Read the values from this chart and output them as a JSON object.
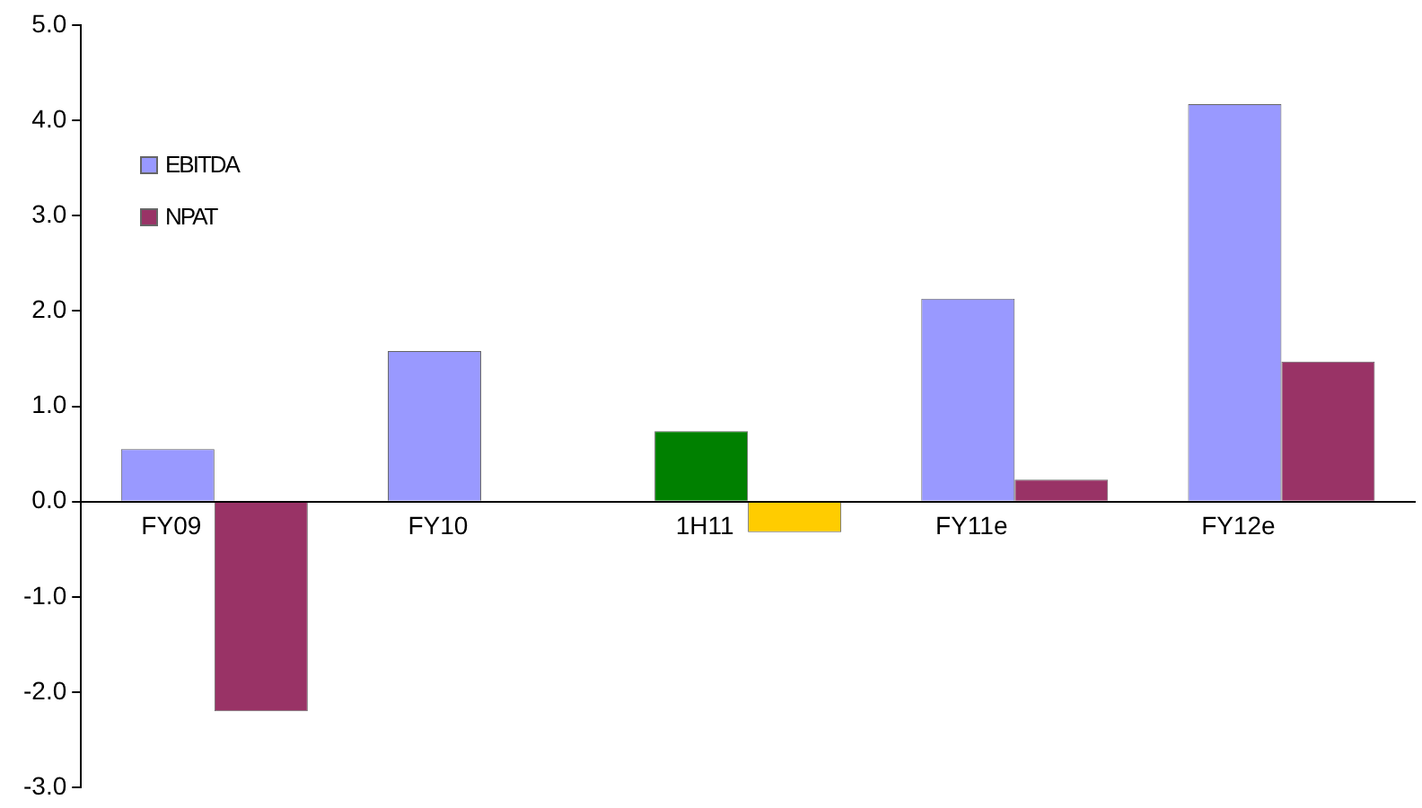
{
  "chart_data": {
    "type": "bar",
    "categories": [
      "FY09",
      "FY10",
      "1H11",
      "FY11e",
      "FY12e"
    ],
    "series": [
      {
        "name": "EBITDA",
        "color": "#9999ff",
        "colors": [
          "#9999ff",
          "#9999ff",
          "#008000",
          "#9999ff",
          "#9999ff"
        ],
        "values": [
          0.55,
          1.58,
          0.74,
          2.13,
          4.17
        ]
      },
      {
        "name": "NPAT",
        "color": "#993366",
        "colors": [
          "#993366",
          null,
          "#ffcc00",
          "#993366",
          "#993366"
        ],
        "values": [
          -2.2,
          null,
          -0.32,
          0.23,
          1.47
        ]
      }
    ],
    "ylim": [
      -3,
      5
    ],
    "yticks": [
      {
        "value": -3,
        "label": "-3.0"
      },
      {
        "value": -2,
        "label": "-2.0"
      },
      {
        "value": -1,
        "label": "-1.0"
      },
      {
        "value": 0,
        "label": "0.0"
      },
      {
        "value": 1,
        "label": "1.0"
      },
      {
        "value": 2,
        "label": "2.0"
      },
      {
        "value": 3,
        "label": "3.0"
      },
      {
        "value": 4,
        "label": "4.0"
      },
      {
        "value": 5,
        "label": "5.0"
      }
    ],
    "grid": false,
    "legend": "top left"
  }
}
